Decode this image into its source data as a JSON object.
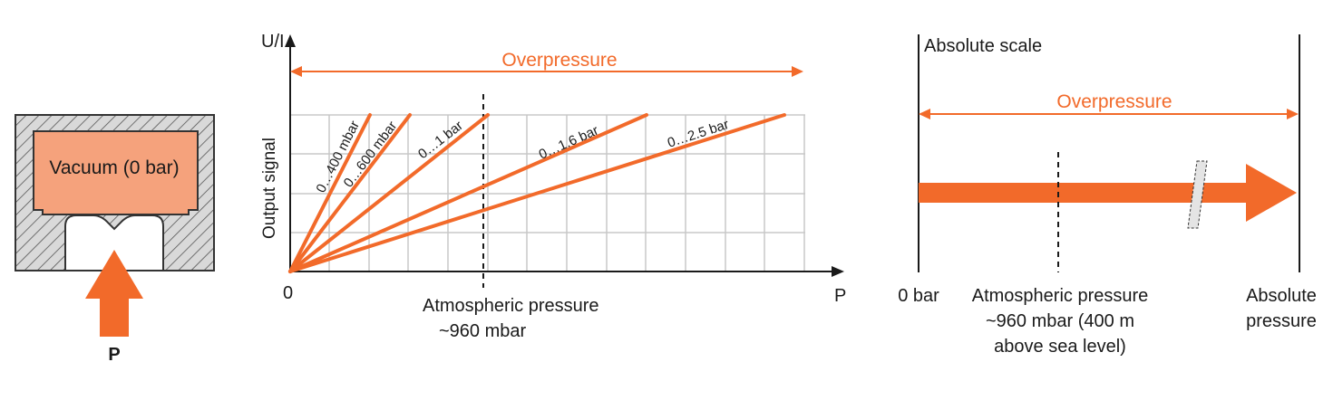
{
  "colors": {
    "orange": "#f26a2a",
    "salmon": "#f5a27c",
    "grid": "#c8c8c8",
    "dark": "#1a1a1a"
  },
  "sensor": {
    "chamber_label": "Vacuum (0 bar)",
    "pressure_label": "P"
  },
  "chart": {
    "y_axis_symbol": "U/I",
    "x_axis_symbol": "P",
    "origin_label": "0",
    "y_label": "Output signal",
    "overpressure_label": "Overpressure",
    "atm_line1": "Atmospheric pressure",
    "atm_line2": "~960 mbar",
    "ranges": [
      "0…400 mbar",
      "0…600 mbar",
      "0…1 bar",
      "0…1.6 bar",
      "0…2.5 bar"
    ]
  },
  "scale": {
    "title": "Absolute scale",
    "overpressure_label": "Overpressure",
    "zero_label": "0 bar",
    "atm_line1": "Atmospheric pressure",
    "atm_line2": "~960 mbar (400 m",
    "atm_line3": "above sea level)",
    "abs_line1": "Absolute",
    "abs_line2": "pressure"
  }
}
